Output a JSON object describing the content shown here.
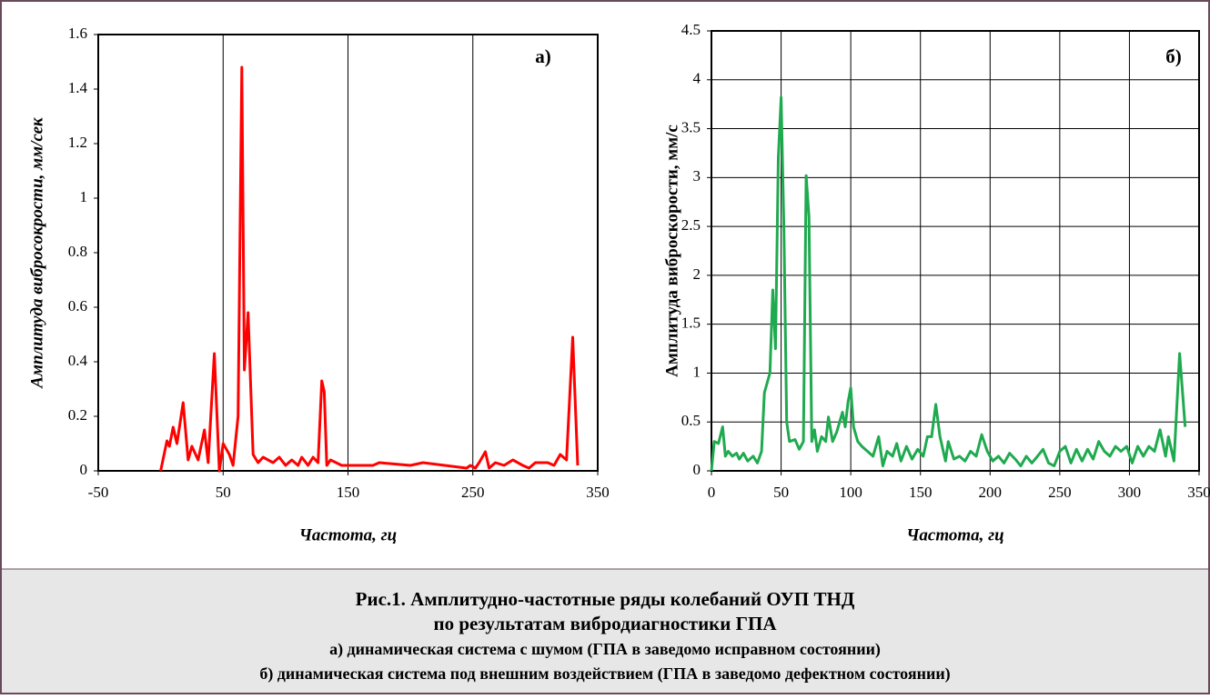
{
  "chart_data": [
    {
      "type": "line",
      "annotation": "а)",
      "ylabel": "Амплитуда вибросокрости, мм/сек",
      "xlabel": "Частота, гц",
      "color": "#ff0000",
      "xlim": [
        -50,
        350
      ],
      "xticks": [
        -50,
        50,
        150,
        250,
        350
      ],
      "ylim": [
        0,
        1.6
      ],
      "yticks": [
        0,
        0.2,
        0.4,
        0.6,
        0.8,
        1,
        1.2,
        1.4,
        1.6
      ],
      "xgrid": true,
      "ygrid": false,
      "x": [
        0,
        5,
        7,
        10,
        13,
        18,
        22,
        25,
        30,
        35,
        38,
        43,
        47,
        50,
        55,
        58,
        62,
        65,
        67,
        70,
        74,
        78,
        82,
        90,
        95,
        100,
        105,
        110,
        113,
        118,
        122,
        126,
        129,
        131,
        133,
        136,
        145,
        170,
        175,
        200,
        210,
        245,
        248,
        252,
        255,
        260,
        263,
        268,
        275,
        282,
        290,
        295,
        300,
        310,
        315,
        320,
        325,
        330,
        334
      ],
      "values": [
        0,
        0.11,
        0.09,
        0.16,
        0.1,
        0.25,
        0.04,
        0.09,
        0.04,
        0.15,
        0.03,
        0.43,
        0,
        0.1,
        0.06,
        0.02,
        0.2,
        1.48,
        0.37,
        0.58,
        0.06,
        0.03,
        0.05,
        0.03,
        0.05,
        0.02,
        0.04,
        0.02,
        0.05,
        0.02,
        0.05,
        0.03,
        0.33,
        0.29,
        0.02,
        0.04,
        0.02,
        0.02,
        0.03,
        0.02,
        0.03,
        0.01,
        0.02,
        0.01,
        0.03,
        0.07,
        0.01,
        0.03,
        0.02,
        0.04,
        0.02,
        0.01,
        0.03,
        0.03,
        0.02,
        0.06,
        0.04,
        0.49,
        0.02
      ]
    },
    {
      "type": "line",
      "annotation": "б)",
      "ylabel": "Амплитуда виброскорости, мм/с",
      "xlabel": "Частота, гц",
      "color": "#1faa4f",
      "xlim": [
        0,
        350
      ],
      "xticks": [
        0,
        50,
        100,
        150,
        200,
        250,
        300,
        350
      ],
      "ylim": [
        0,
        4.5
      ],
      "yticks": [
        0,
        0.5,
        1,
        1.5,
        2,
        2.5,
        3,
        3.5,
        4,
        4.5
      ],
      "xgrid": true,
      "ygrid": true,
      "x": [
        0,
        2,
        5,
        8,
        10,
        12,
        15,
        18,
        20,
        23,
        26,
        30,
        33,
        36,
        38,
        42,
        44,
        46,
        48,
        50,
        52,
        54,
        56,
        60,
        63,
        66,
        68,
        70,
        72,
        74,
        76,
        79,
        82,
        84,
        87,
        90,
        94,
        96,
        98,
        100,
        102,
        105,
        108,
        112,
        116,
        120,
        123,
        126,
        130,
        133,
        136,
        140,
        144,
        148,
        152,
        155,
        158,
        161,
        164,
        168,
        170,
        174,
        178,
        182,
        186,
        190,
        194,
        198,
        202,
        206,
        210,
        214,
        218,
        222,
        226,
        230,
        234,
        238,
        242,
        246,
        250,
        254,
        258,
        262,
        266,
        270,
        274,
        278,
        282,
        286,
        290,
        294,
        298,
        302,
        306,
        310,
        314,
        318,
        322,
        326,
        328,
        332,
        336,
        340
      ],
      "values": [
        0,
        0.3,
        0.28,
        0.45,
        0.15,
        0.2,
        0.15,
        0.18,
        0.12,
        0.18,
        0.1,
        0.15,
        0.08,
        0.2,
        0.8,
        1.0,
        1.85,
        1.25,
        3.2,
        3.82,
        2.5,
        0.5,
        0.3,
        0.32,
        0.22,
        0.3,
        3.02,
        2.6,
        0.3,
        0.42,
        0.2,
        0.35,
        0.3,
        0.55,
        0.3,
        0.4,
        0.6,
        0.45,
        0.7,
        0.85,
        0.45,
        0.3,
        0.25,
        0.2,
        0.15,
        0.35,
        0.05,
        0.2,
        0.15,
        0.28,
        0.1,
        0.25,
        0.12,
        0.22,
        0.15,
        0.35,
        0.35,
        0.68,
        0.35,
        0.1,
        0.3,
        0.12,
        0.15,
        0.1,
        0.2,
        0.15,
        0.37,
        0.2,
        0.1,
        0.15,
        0.08,
        0.18,
        0.12,
        0.05,
        0.15,
        0.08,
        0.15,
        0.22,
        0.08,
        0.05,
        0.2,
        0.25,
        0.08,
        0.22,
        0.1,
        0.22,
        0.12,
        0.3,
        0.2,
        0.15,
        0.25,
        0.2,
        0.25,
        0.08,
        0.25,
        0.15,
        0.25,
        0.2,
        0.42,
        0.15,
        0.35,
        0.1,
        1.2,
        0.45
      ]
    }
  ],
  "caption": {
    "lines": [
      "Рис.1. Амплитудно-частотные ряды колебаний ОУП ТНД",
      "по результатам вибродиагностики ГПА",
      "а) динамическая система с шумом (ГПА в заведомо исправном состоянии)",
      "б) динамическая система под внешним воздействием (ГПА в заведомо дефектном состоянии)"
    ]
  }
}
